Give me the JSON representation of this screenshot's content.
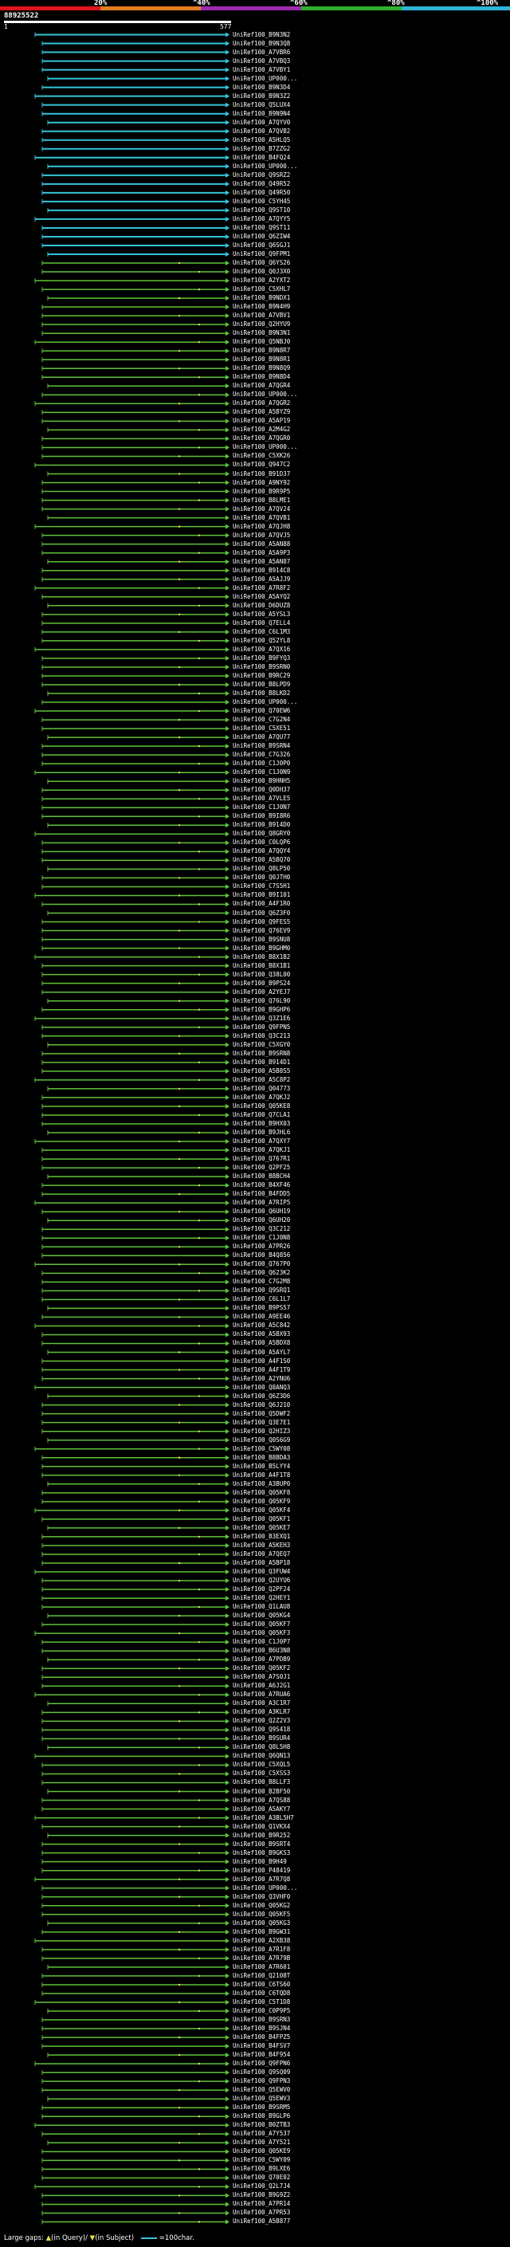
{
  "scale": {
    "ticks": [
      "20%",
      "^40%",
      "^60%",
      "^80%",
      "^100%"
    ],
    "colors": [
      "#e0141b",
      "#e07b1e",
      "#9d2bb0",
      "#2db12d",
      "#2db4d8"
    ]
  },
  "query": {
    "id": "88925522",
    "start": "1",
    "end": "577"
  },
  "colors": {
    "high": "#35c4d8",
    "medium": "#5fc23a",
    "gap_arrow": "#e8e14c"
  },
  "legend": {
    "label": "Large gaps:",
    "query_gap": "(in Query)/",
    "subject_gap": "(in Subject)",
    "scale_text": "=100char."
  },
  "hits": [
    "UniRef100_B9N3N2",
    "UniRef100_B9N3Q8",
    "UniRef100_A7VBR6",
    "UniRef100_A7VBQ3",
    "UniRef100_A7VBY1",
    "UniRef100_UP000...",
    "UniRef100_B9N3D4",
    "UniRef100_B9N3Z2",
    "UniRef100_Q5LUX4",
    "UniRef100_B9N9N4",
    "UniRef100_A7QYV0",
    "UniRef100_A7QVB2",
    "UniRef100_A5HLQ5",
    "UniRef100_B7ZZG2",
    "UniRef100_B4FQ24",
    "UniRef100_UP000...",
    "UniRef100_Q9SRZ2",
    "UniRef100_Q49R52",
    "UniRef100_Q49R50",
    "UniRef100_C5YH45",
    "UniRef100_Q9ST10",
    "UniRef100_A7QYY5",
    "UniRef100_Q9ST11",
    "UniRef100_Q6ZIW4",
    "UniRef100_Q6SGJ1",
    "UniRef100_Q9FPM1",
    "UniRef100_Q6YS26",
    "UniRef100_Q0J3X0",
    "UniRef100_A2YXT2",
    "UniRef100_C5XHL7",
    "UniRef100_B9NDX1",
    "UniRef100_B9N4H9",
    "UniRef100_A7VBV1",
    "UniRef100_Q2HYU9",
    "UniRef100_B9N3N1",
    "UniRef100_Q5NBJ0",
    "UniRef100_B9N8R7",
    "UniRef100_B9N8R1",
    "UniRef100_B9N8Q9",
    "UniRef100_B9N8D4",
    "UniRef100_A7QGR4",
    "UniRef100_UP000...",
    "UniRef100_A7QGR2",
    "UniRef100_A5BYZ9",
    "UniRef100_A5AP19",
    "UniRef100_A2M4G2",
    "UniRef100_A7QGR0",
    "UniRef100_UP000...",
    "UniRef100_C5XK26",
    "UniRef100_Q947C2",
    "UniRef100_B91D37",
    "UniRef100_A9NY92",
    "UniRef100_B9R9P5",
    "UniRef100_B8LME1",
    "UniRef100_A7QV24",
    "UniRef100_A7QVB1",
    "UniRef100_A7QJH8",
    "UniRef100_A7QVJ5",
    "UniRef100_A5AN88",
    "UniRef100_A5A9P3",
    "UniRef100_A5AN87",
    "UniRef100_B914C8",
    "UniRef100_A5AJJ9",
    "UniRef100_A7R8F2",
    "UniRef100_A5AYQ2",
    "UniRef100_D6DUZ8",
    "UniRef100_A5YSL3",
    "UniRef100_Q7ELL4",
    "UniRef100_C6L1M3",
    "UniRef100_Q52YL8",
    "UniRef100_A7QX16",
    "UniRef100_B9FYQ3",
    "UniRef100_B9SRN0",
    "UniRef100_B9RC29",
    "UniRef100_B8LPD9",
    "UniRef100_B8LKD2",
    "UniRef100_UP000...",
    "UniRef100_Q70EW6",
    "UniRef100_C7G2N4",
    "UniRef100_C5XE51",
    "UniRef100_A7QU77",
    "UniRef100_B9SRN4",
    "UniRef100_C7G326",
    "UniRef100_C1J0P0",
    "UniRef100_C1J0N9",
    "UniRef100_B9HNH5",
    "UniRef100_Q0DH37",
    "UniRef100_A7VLE5",
    "UniRef100_C1J0N7",
    "UniRef100_B9I8R6",
    "UniRef100_B914D0",
    "UniRef100_Q8GRY0",
    "UniRef100_C0LQP6",
    "UniRef100_A7QQY4",
    "UniRef100_A5BQ70",
    "UniRef100_Q8LP50",
    "UniRef100_Q0JTH0",
    "UniRef100_C7S5H1",
    "UniRef100_B9I101",
    "UniRef100_A4F1R0",
    "UniRef100_Q6Z3F0",
    "UniRef100_Q9FES5",
    "UniRef100_Q76EV9",
    "UniRef100_B9SNU8",
    "UniRef100_B9GHM0",
    "UniRef100_B8X1B2",
    "UniRef100_B8X1B1",
    "UniRef100_Q38L00",
    "UniRef100_B9PS24",
    "UniRef100_A2YEJ7",
    "UniRef100_Q76L90",
    "UniRef100_B9GHP6",
    "UniRef100_Q3Z1E6",
    "UniRef100_Q9FPN5",
    "UniRef100_Q3C213",
    "UniRef100_C5XGY0",
    "UniRef100_B9SRN8",
    "UniRef100_B914D1",
    "UniRef100_A5B8S5",
    "UniRef100_A5C8P2",
    "UniRef100_Q04773",
    "UniRef100_A7QKJ2",
    "UniRef100_Q05KE8",
    "UniRef100_Q7CLA1",
    "UniRef100_B9HX03",
    "UniRef100_B9JHL6",
    "UniRef100_A7QXY7",
    "UniRef100_A7QKJ1",
    "UniRef100_Q767R1",
    "UniRef100_Q2PF25",
    "UniRef100_B8BCH4",
    "UniRef100_B4XF46",
    "UniRef100_B4FDD5",
    "UniRef100_A7RIP5",
    "UniRef100_Q6UH19",
    "UniRef100_Q6UH20",
    "UniRef100_Q3C212",
    "UniRef100_C1J0N8",
    "UniRef100_A7PR26",
    "UniRef100_B4Q856",
    "UniRef100_Q767P0",
    "UniRef100_Q623K2",
    "UniRef100_C7G2M8",
    "UniRef100_Q9SRQ1",
    "UniRef100_C6L1L7",
    "UniRef100_B9PS57",
    "UniRef100_A9EE46",
    "UniRef100_A5C842",
    "UniRef100_A5BX93",
    "UniRef100_A5BDX8",
    "UniRef100_A5AYL7",
    "UniRef100_A4F1S0",
    "UniRef100_A4F1T9",
    "UniRef100_A2YNU6",
    "UniRef100_Q8ANQ3",
    "UniRef100_Q6Z3D6",
    "UniRef100_Q6J210",
    "UniRef100_Q5DWF2",
    "UniRef100_Q3E7E1",
    "UniRef100_Q2HIZ3",
    "UniRef100_Q0S6G9",
    "UniRef100_C5WY08",
    "UniRef100_B8BDA3",
    "UniRef100_B5LYY4",
    "UniRef100_A4F1T8",
    "UniRef100_A3BUP0",
    "UniRef100_Q05KF8",
    "UniRef100_Q05KF9",
    "UniRef100_Q05KF4",
    "UniRef100_Q05KF1",
    "UniRef100_Q05KE7",
    "UniRef100_B3EXQ1",
    "UniRef100_A5KEH3",
    "UniRef100_A7QEQ7",
    "UniRef100_A5BP18",
    "UniRef100_Q3FUW4",
    "UniRef100_Q2UYU6",
    "UniRef100_Q2PF24",
    "UniRef100_Q2HEY1",
    "UniRef100_Q1LAU8",
    "UniRef100_Q05KG4",
    "UniRef100_Q05KF7",
    "UniRef100_Q05KF3",
    "UniRef100_C1J0P7",
    "UniRef100_B6U3N8",
    "UniRef100_A7PDB9",
    "UniRef100_Q05KF2",
    "UniRef100_A7S0J1",
    "UniRef100_A6J2G1",
    "UniRef100_A7RUA6",
    "UniRef100_A3C1R7",
    "UniRef100_A3KLR7",
    "UniRef100_Q2Z2V3",
    "UniRef100_Q9S418",
    "UniRef100_B9SUR4",
    "UniRef100_Q8L5H8",
    "UniRef100_Q6QN13",
    "UniRef100_C5XQL5",
    "UniRef100_C5XSS3",
    "UniRef100_B8LLF3",
    "UniRef100_B2BF50",
    "UniRef100_A7QS88",
    "UniRef100_A5AKY7",
    "UniRef100_A3BL5H7",
    "UniRef100_Q1VKX4",
    "UniRef100_B9R252",
    "UniRef100_B9SRT4",
    "UniRef100_B9GKS3",
    "UniRef100_B9H49",
    "UniRef100_P48419",
    "UniRef100_A7R7Q8",
    "UniRef100_UP000...",
    "UniRef100_Q3VHF0",
    "UniRef100_Q05KG2",
    "UniRef100_Q05KF5",
    "UniRef100_Q05KG3",
    "UniRef100_B9GW31",
    "UniRef100_A2XB38",
    "UniRef100_A7R1F8",
    "UniRef100_A7R79B",
    "UniRef100_A7R601",
    "UniRef100_Q2108T",
    "UniRef100_C6TS60",
    "UniRef100_C6TQD8",
    "UniRef100_C5T1D8",
    "UniRef100_C0P9P5",
    "UniRef100_B9SRN3",
    "UniRef100_B9SJN4",
    "UniRef100_B4FPZ5",
    "UniRef100_B4FSV7",
    "UniRef100_B4F954",
    "UniRef100_Q9FPN6",
    "UniRef100_Q9SQ09",
    "UniRef100_Q9FPN3",
    "UniRef100_Q5EWV0",
    "UniRef100_Q5EWV3",
    "UniRef100_B9SRM5",
    "UniRef100_B9GLP6",
    "UniRef100_B0ZTB3",
    "UniRef100_A7Y537",
    "UniRef100_A7Y521",
    "UniRef100_Q05KE9",
    "UniRef100_C5WY09",
    "UniRef100_B9LXE6",
    "UniRef100_Q70E02",
    "UniRef100_Q2L7J4",
    "UniRef100_B9G9Z2",
    "UniRef100_A7PR14",
    "UniRef100_A7PR53",
    "UniRef100_A5B877"
  ]
}
